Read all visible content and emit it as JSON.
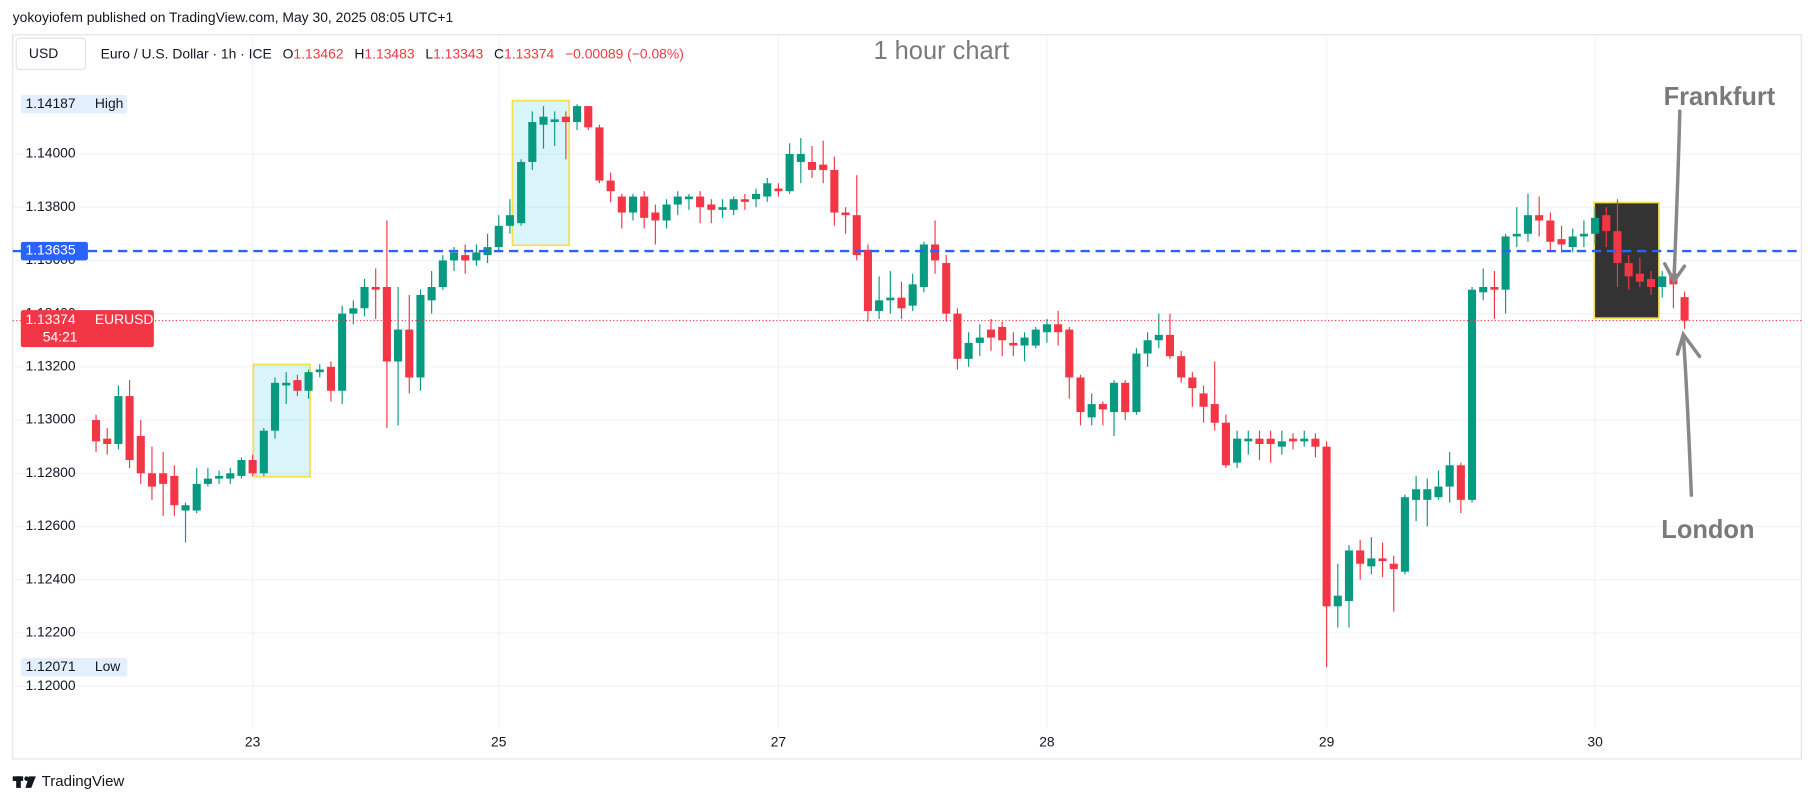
{
  "header": {
    "author_line": "yokoyiofem published on TradingView.com, May 30, 2025 08:05 UTC+1",
    "currency": "USD",
    "symbol_desc": "Euro / U.S. Dollar · 1h · ICE",
    "ohlc_labels": [
      "O",
      "H",
      "L",
      "C"
    ],
    "change": "−0.00089 (−0.08%)"
  },
  "annotations": {
    "title": "1 hour chart",
    "frankfurt": "Frankfurt",
    "london": "London"
  },
  "footer": {
    "brand": "TradingView"
  },
  "chart_data": {
    "type": "candlestick",
    "up_color": "#089981",
    "down_color": "#f23645",
    "categories": [
      null,
      null,
      null,
      null,
      null,
      null,
      null,
      null,
      null,
      null,
      null,
      null,
      null,
      null,
      "23",
      null,
      null,
      null,
      null,
      null,
      null,
      null,
      null,
      null,
      null,
      null,
      null,
      null,
      null,
      null,
      null,
      null,
      null,
      null,
      null,
      null,
      "25",
      null,
      null,
      null,
      null,
      null,
      null,
      null,
      null,
      null,
      null,
      null,
      null,
      null,
      null,
      null,
      null,
      null,
      null,
      null,
      null,
      null,
      null,
      null,
      null,
      "27",
      null,
      null,
      null,
      null,
      null,
      null,
      null,
      null,
      null,
      null,
      null,
      null,
      null,
      null,
      null,
      null,
      null,
      null,
      null,
      null,
      null,
      null,
      null,
      "28",
      null,
      null,
      null,
      null,
      null,
      null,
      null,
      null,
      null,
      null,
      null,
      null,
      null,
      null,
      null,
      null,
      null,
      null,
      null,
      null,
      null,
      null,
      null,
      null,
      "29",
      null,
      null,
      null,
      null,
      null,
      null,
      null,
      null,
      null,
      null,
      null,
      null,
      null,
      null,
      null,
      null,
      null,
      null,
      null,
      null,
      null,
      null,
      null,
      "30",
      null,
      null,
      null,
      null,
      null,
      null,
      null,
      null
    ],
    "open": [
      1.13,
      1.1293,
      1.1291,
      1.1309,
      1.1294,
      1.128,
      1.128,
      1.1279,
      1.1266,
      1.1266,
      1.1276,
      1.1278,
      1.1278,
      1.1279,
      1.1285,
      1.128,
      1.1296,
      1.1313,
      1.1315,
      1.1311,
      1.1318,
      1.132,
      1.1311,
      1.134,
      1.1342,
      1.135,
      1.135,
      1.1322,
      1.1334,
      1.1316,
      1.1345,
      1.135,
      1.136,
      1.1362,
      1.136,
      1.1362,
      1.1365,
      1.1373,
      1.1374,
      1.1397,
      1.1411,
      1.1412,
      1.1414,
      1.1412,
      1.1418,
      1.141,
      1.139,
      1.1384,
      1.1378,
      1.1384,
      1.1378,
      1.1375,
      1.1381,
      1.1383,
      1.1384,
      1.1381,
      1.1379,
      1.1379,
      1.1383,
      1.1383,
      1.1384,
      1.1387,
      1.1386,
      1.1397,
      1.1397,
      1.1396,
      1.1394,
      1.1378,
      1.1377,
      1.1364,
      1.1341,
      1.1345,
      1.1346,
      1.1343,
      1.135,
      1.1366,
      1.1359,
      1.134,
      1.1323,
      1.1329,
      1.1334,
      1.1335,
      1.1329,
      1.1328,
      1.1328,
      1.1333,
      1.1336,
      1.1334,
      1.1316,
      1.1301,
      1.1306,
      1.1303,
      1.1314,
      1.1303,
      1.1325,
      1.133,
      1.1332,
      1.1324,
      1.1316,
      1.131,
      1.1306,
      1.1299,
      1.1284,
      1.1292,
      1.1293,
      1.1293,
      1.129,
      1.1293,
      1.1292,
      1.1293,
      1.129,
      1.123,
      1.1232,
      1.1251,
      1.1245,
      1.1248,
      1.1246,
      1.1243,
      1.127,
      1.127,
      1.1271,
      1.1275,
      1.1283,
      1.127,
      1.1348,
      1.135,
      1.1349,
      1.1369,
      1.137,
      1.1377,
      1.1375,
      1.1368,
      1.1365,
      1.1369,
      1.137,
      1.1377,
      1.1371,
      1.1359,
      1.1355,
      1.1353,
      1.135,
      1.1355,
      1.13462
    ],
    "high": [
      1.1302,
      1.1297,
      1.1313,
      1.1315,
      1.13,
      1.129,
      1.1288,
      1.1283,
      1.1269,
      1.1282,
      1.1282,
      1.1281,
      1.1282,
      1.1286,
      1.1287,
      1.1297,
      1.1316,
      1.1318,
      1.1317,
      1.1319,
      1.1321,
      1.1322,
      1.1343,
      1.1345,
      1.1353,
      1.1357,
      1.1375,
      1.135,
      1.1347,
      1.1349,
      1.1356,
      1.1362,
      1.1365,
      1.1366,
      1.1366,
      1.137,
      1.1377,
      1.1383,
      1.1398,
      1.1416,
      1.1418,
      1.1416,
      1.1416,
      1.14187,
      1.1418,
      1.1411,
      1.1393,
      1.1385,
      1.1385,
      1.1386,
      1.1381,
      1.1383,
      1.1386,
      1.1385,
      1.1386,
      1.1383,
      1.1383,
      1.1384,
      1.1385,
      1.1387,
      1.1391,
      1.1389,
      1.1404,
      1.1406,
      1.1403,
      1.1405,
      1.1399,
      1.138,
      1.1392,
      1.1366,
      1.1354,
      1.1356,
      1.1352,
      1.1355,
      1.1367,
      1.1375,
      1.1362,
      1.1342,
      1.1333,
      1.1336,
      1.1338,
      1.1337,
      1.1333,
      1.1333,
      1.1335,
      1.1338,
      1.1341,
      1.1335,
      1.1317,
      1.131,
      1.1307,
      1.1315,
      1.1315,
      1.1327,
      1.1333,
      1.134,
      1.134,
      1.1326,
      1.1318,
      1.1313,
      1.1322,
      1.1302,
      1.1296,
      1.1296,
      1.1296,
      1.1296,
      1.1296,
      1.1295,
      1.1296,
      1.1295,
      1.1292,
      1.1246,
      1.1253,
      1.1255,
      1.1256,
      1.1254,
      1.1249,
      1.1272,
      1.1279,
      1.1278,
      1.1281,
      1.1288,
      1.1284,
      1.135,
      1.1357,
      1.1356,
      1.137,
      1.138,
      1.1385,
      1.1384,
      1.1378,
      1.1373,
      1.1372,
      1.1375,
      1.138,
      1.138,
      1.1383,
      1.1362,
      1.1361,
      1.1356,
      1.1356,
      1.1357,
      1.13483
    ],
    "low": [
      1.1288,
      1.1287,
      1.1289,
      1.1282,
      1.1276,
      1.127,
      1.1264,
      1.1264,
      1.1254,
      1.1265,
      1.1275,
      1.1276,
      1.1276,
      1.1278,
      1.1279,
      1.1279,
      1.1293,
      1.1306,
      1.1309,
      1.1308,
      1.1316,
      1.1307,
      1.1306,
      1.1336,
      1.1339,
      1.1338,
      1.1297,
      1.1298,
      1.131,
      1.1311,
      1.134,
      1.1349,
      1.1356,
      1.1355,
      1.1358,
      1.1359,
      1.1363,
      1.137,
      1.1373,
      1.1394,
      1.1402,
      1.1403,
      1.1398,
      1.1409,
      1.1409,
      1.1389,
      1.1382,
      1.1372,
      1.1375,
      1.1372,
      1.1366,
      1.1372,
      1.1377,
      1.1379,
      1.1374,
      1.1374,
      1.1376,
      1.1377,
      1.1379,
      1.138,
      1.1382,
      1.1384,
      1.1385,
      1.1389,
      1.1391,
      1.1389,
      1.1373,
      1.137,
      1.136,
      1.1337,
      1.1338,
      1.134,
      1.1338,
      1.1341,
      1.1348,
      1.1355,
      1.1337,
      1.1319,
      1.132,
      1.1324,
      1.1326,
      1.1324,
      1.1324,
      1.1322,
      1.1327,
      1.1329,
      1.1328,
      1.1308,
      1.1298,
      1.1298,
      1.1298,
      1.1294,
      1.13,
      1.1302,
      1.132,
      1.1327,
      1.1323,
      1.1314,
      1.1305,
      1.1299,
      1.1296,
      1.1282,
      1.1282,
      1.1287,
      1.1285,
      1.1284,
      1.1287,
      1.1289,
      1.129,
      1.1286,
      1.12071,
      1.1222,
      1.1222,
      1.124,
      1.1242,
      1.1241,
      1.1228,
      1.1242,
      1.1262,
      1.126,
      1.127,
      1.1269,
      1.1265,
      1.1269,
      1.1345,
      1.1338,
      1.134,
      1.1365,
      1.1367,
      1.1369,
      1.1363,
      1.1363,
      1.1363,
      1.1365,
      1.1366,
      1.1365,
      1.135,
      1.1349,
      1.135,
      1.1347,
      1.1346,
      1.1342,
      1.13343
    ],
    "close": [
      1.1292,
      1.1291,
      1.1309,
      1.1285,
      1.128,
      1.1275,
      1.1276,
      1.1268,
      1.1268,
      1.1276,
      1.1278,
      1.1279,
      1.128,
      1.1285,
      1.128,
      1.1296,
      1.1314,
      1.1314,
      1.1311,
      1.1318,
      1.1319,
      1.1311,
      1.134,
      1.1342,
      1.135,
      1.1349,
      1.1322,
      1.1334,
      1.1316,
      1.1347,
      1.135,
      1.136,
      1.1363,
      1.136,
      1.1363,
      1.1365,
      1.1373,
      1.1377,
      1.1397,
      1.1412,
      1.1414,
      1.1413,
      1.1412,
      1.1418,
      1.141,
      1.139,
      1.1386,
      1.1378,
      1.1384,
      1.1376,
      1.1375,
      1.1381,
      1.1384,
      1.1384,
      1.138,
      1.1379,
      1.138,
      1.1383,
      1.1382,
      1.1385,
      1.1389,
      1.1386,
      1.14,
      1.14,
      1.1394,
      1.1394,
      1.1378,
      1.1377,
      1.1362,
      1.1341,
      1.1345,
      1.1346,
      1.1342,
      1.1351,
      1.1366,
      1.136,
      1.134,
      1.1323,
      1.1329,
      1.1331,
      1.1331,
      1.133,
      1.1328,
      1.1331,
      1.1334,
      1.1336,
      1.1333,
      1.1316,
      1.1303,
      1.1306,
      1.1304,
      1.1314,
      1.1303,
      1.1325,
      1.133,
      1.1332,
      1.1324,
      1.1316,
      1.1312,
      1.1305,
      1.1299,
      1.1283,
      1.1293,
      1.1293,
      1.1291,
      1.1291,
      1.1292,
      1.1292,
      1.1293,
      1.129,
      1.123,
      1.1234,
      1.1251,
      1.1246,
      1.1248,
      1.1247,
      1.1244,
      1.1271,
      1.1274,
      1.1274,
      1.1275,
      1.1283,
      1.127,
      1.1349,
      1.135,
      1.1349,
      1.1369,
      1.137,
      1.1377,
      1.1375,
      1.1367,
      1.1366,
      1.1369,
      1.137,
      1.1376,
      1.1371,
      1.1359,
      1.1354,
      1.1352,
      1.135,
      1.1354,
      1.1351,
      1.13374
    ],
    "ylim": [
      1.11861,
      1.14448
    ],
    "yticks": [
      {
        "value": 1.12,
        "label": "1.12000"
      },
      {
        "value": 1.122,
        "label": "1.12200"
      },
      {
        "value": 1.124,
        "label": "1.12400"
      },
      {
        "value": 1.126,
        "label": "1.12600"
      },
      {
        "value": 1.128,
        "label": "1.12800"
      },
      {
        "value": 1.13,
        "label": "1.13000"
      },
      {
        "value": 1.132,
        "label": "1.13200"
      },
      {
        "value": 1.134,
        "label": "1.13400"
      },
      {
        "value": 1.136,
        "label": "1.13600"
      },
      {
        "value": 1.138,
        "label": "1.13800"
      },
      {
        "value": 1.14,
        "label": "1.14000"
      }
    ],
    "grid": true,
    "price_line": {
      "value": 1.13635,
      "color": "#2962ff"
    },
    "high_marker": {
      "value": 1.14187,
      "label": "High"
    },
    "low_marker": {
      "value": 1.12071,
      "label": "Low"
    },
    "current": {
      "symbol": "EURUSD",
      "countdown": "54:21"
    }
  }
}
